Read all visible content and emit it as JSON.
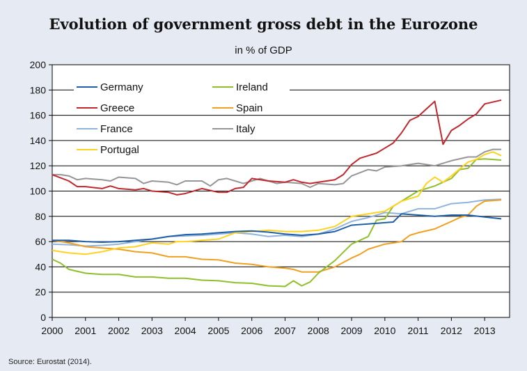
{
  "chart_data": {
    "type": "line",
    "title": "Evolution of government gross debt in the Eurozone",
    "subtitle": "in % of GDP",
    "source": "Source: Eurostat (2014).",
    "xlabel": "",
    "ylabel": "",
    "xlim": [
      2000,
      2013.75
    ],
    "ylim": [
      0,
      200
    ],
    "x_ticks": [
      2000,
      2001,
      2002,
      2003,
      2004,
      2005,
      2006,
      2007,
      2008,
      2009,
      2010,
      2011,
      2012,
      2013
    ],
    "y_ticks": [
      0,
      20,
      40,
      60,
      80,
      100,
      120,
      140,
      160,
      180,
      200
    ],
    "grid": "horizontal",
    "legend_position": "top-left",
    "series": [
      {
        "name": "Germany",
        "color": "#1f5fa6",
        "points": [
          [
            2000,
            61
          ],
          [
            2000.5,
            61
          ],
          [
            2001,
            60
          ],
          [
            2001.5,
            59.5
          ],
          [
            2002,
            60
          ],
          [
            2002.5,
            61
          ],
          [
            2003,
            62
          ],
          [
            2003.5,
            64
          ],
          [
            2004,
            65.5
          ],
          [
            2004.5,
            66
          ],
          [
            2005,
            67
          ],
          [
            2005.5,
            68
          ],
          [
            2006,
            68.5
          ],
          [
            2006.5,
            67.5
          ],
          [
            2007,
            66
          ],
          [
            2007.5,
            65
          ],
          [
            2008,
            66
          ],
          [
            2008.5,
            68
          ],
          [
            2009,
            73
          ],
          [
            2009.5,
            74
          ],
          [
            2010,
            75
          ],
          [
            2010.25,
            75.5
          ],
          [
            2010.5,
            82
          ],
          [
            2011,
            81
          ],
          [
            2011.5,
            80
          ],
          [
            2012,
            81
          ],
          [
            2012.5,
            81
          ],
          [
            2013,
            79.5
          ],
          [
            2013.5,
            78
          ]
        ]
      },
      {
        "name": "Ireland",
        "color": "#8fbf2b",
        "points": [
          [
            2000,
            46
          ],
          [
            2000.25,
            43
          ],
          [
            2000.5,
            38
          ],
          [
            2001,
            35
          ],
          [
            2001.5,
            34
          ],
          [
            2002,
            34
          ],
          [
            2002.5,
            32
          ],
          [
            2003,
            32
          ],
          [
            2003.5,
            31
          ],
          [
            2004,
            31
          ],
          [
            2004.5,
            29.5
          ],
          [
            2005,
            29
          ],
          [
            2005.5,
            27.5
          ],
          [
            2006,
            27
          ],
          [
            2006.5,
            25
          ],
          [
            2007,
            24.5
          ],
          [
            2007.25,
            29
          ],
          [
            2007.5,
            25
          ],
          [
            2007.75,
            28
          ],
          [
            2008,
            35
          ],
          [
            2008.5,
            45
          ],
          [
            2009,
            58
          ],
          [
            2009.5,
            64
          ],
          [
            2009.75,
            77
          ],
          [
            2010,
            78
          ],
          [
            2010.25,
            88
          ],
          [
            2010.5,
            92
          ],
          [
            2011,
            100
          ],
          [
            2011.5,
            104
          ],
          [
            2012,
            110
          ],
          [
            2012.25,
            117
          ],
          [
            2012.5,
            118
          ],
          [
            2012.75,
            125
          ],
          [
            2013,
            125.5
          ],
          [
            2013.5,
            124.5
          ]
        ]
      },
      {
        "name": "Greece",
        "color": "#c0272d",
        "points": [
          [
            2000,
            113
          ],
          [
            2000.5,
            108
          ],
          [
            2000.75,
            103.5
          ],
          [
            2001,
            103.5
          ],
          [
            2001.5,
            102
          ],
          [
            2001.75,
            104
          ],
          [
            2002,
            102
          ],
          [
            2002.5,
            101
          ],
          [
            2002.75,
            102
          ],
          [
            2003,
            100
          ],
          [
            2003.5,
            99
          ],
          [
            2003.75,
            97
          ],
          [
            2004,
            98
          ],
          [
            2004.5,
            102
          ],
          [
            2005,
            99
          ],
          [
            2005.25,
            99
          ],
          [
            2005.5,
            102
          ],
          [
            2005.75,
            103
          ],
          [
            2006,
            110
          ],
          [
            2006.5,
            108
          ],
          [
            2007,
            107
          ],
          [
            2007.25,
            109
          ],
          [
            2007.5,
            107
          ],
          [
            2007.75,
            106
          ],
          [
            2008,
            107
          ],
          [
            2008.5,
            109
          ],
          [
            2008.75,
            113
          ],
          [
            2009,
            121
          ],
          [
            2009.25,
            126
          ],
          [
            2009.5,
            128
          ],
          [
            2009.75,
            130
          ],
          [
            2010,
            134
          ],
          [
            2010.25,
            138
          ],
          [
            2010.5,
            146
          ],
          [
            2010.75,
            156
          ],
          [
            2011,
            159
          ],
          [
            2011.25,
            165
          ],
          [
            2011.5,
            171
          ],
          [
            2011.75,
            137
          ],
          [
            2012,
            148
          ],
          [
            2012.25,
            152
          ],
          [
            2012.5,
            157
          ],
          [
            2012.75,
            161
          ],
          [
            2013,
            169
          ],
          [
            2013.5,
            172
          ]
        ]
      },
      {
        "name": "Spain",
        "color": "#f0a020",
        "points": [
          [
            2000,
            61
          ],
          [
            2000.5,
            59
          ],
          [
            2001,
            56
          ],
          [
            2001.5,
            55
          ],
          [
            2002,
            54
          ],
          [
            2002.5,
            52
          ],
          [
            2003,
            51
          ],
          [
            2003.5,
            48
          ],
          [
            2004,
            48
          ],
          [
            2004.5,
            46
          ],
          [
            2005,
            45.5
          ],
          [
            2005.5,
            43
          ],
          [
            2006,
            42
          ],
          [
            2006.5,
            40
          ],
          [
            2007,
            39
          ],
          [
            2007.25,
            38
          ],
          [
            2007.5,
            36
          ],
          [
            2008,
            36
          ],
          [
            2008.5,
            40
          ],
          [
            2009,
            47
          ],
          [
            2009.25,
            50
          ],
          [
            2009.5,
            54
          ],
          [
            2010,
            58
          ],
          [
            2010.5,
            60
          ],
          [
            2010.75,
            65
          ],
          [
            2011,
            67
          ],
          [
            2011.5,
            70
          ],
          [
            2012,
            76
          ],
          [
            2012.25,
            79
          ],
          [
            2012.5,
            81
          ],
          [
            2012.75,
            88
          ],
          [
            2013,
            92
          ],
          [
            2013.5,
            93
          ]
        ]
      },
      {
        "name": "France",
        "color": "#8fb3dd",
        "points": [
          [
            2000,
            58
          ],
          [
            2000.5,
            57.5
          ],
          [
            2001,
            56.5
          ],
          [
            2001.5,
            57
          ],
          [
            2002,
            58
          ],
          [
            2002.5,
            60
          ],
          [
            2003,
            62
          ],
          [
            2003.5,
            64
          ],
          [
            2004,
            64.5
          ],
          [
            2004.5,
            65
          ],
          [
            2005,
            66
          ],
          [
            2005.5,
            67
          ],
          [
            2006,
            66
          ],
          [
            2006.5,
            64
          ],
          [
            2007,
            65
          ],
          [
            2007.5,
            64
          ],
          [
            2008,
            66
          ],
          [
            2008.5,
            70
          ],
          [
            2009,
            76
          ],
          [
            2009.5,
            79
          ],
          [
            2010,
            83
          ],
          [
            2010.5,
            82
          ],
          [
            2011,
            86
          ],
          [
            2011.5,
            86
          ],
          [
            2012,
            90
          ],
          [
            2012.5,
            91
          ],
          [
            2013,
            93
          ],
          [
            2013.5,
            93.5
          ]
        ]
      },
      {
        "name": "Italy",
        "color": "#959595",
        "points": [
          [
            2000,
            113
          ],
          [
            2000.25,
            113
          ],
          [
            2000.5,
            112
          ],
          [
            2000.75,
            109
          ],
          [
            2001,
            110
          ],
          [
            2001.5,
            109
          ],
          [
            2001.75,
            108
          ],
          [
            2002,
            111
          ],
          [
            2002.5,
            110
          ],
          [
            2002.75,
            106
          ],
          [
            2003,
            108
          ],
          [
            2003.5,
            107
          ],
          [
            2003.75,
            105
          ],
          [
            2004,
            108
          ],
          [
            2004.5,
            108
          ],
          [
            2004.75,
            104
          ],
          [
            2005,
            109
          ],
          [
            2005.25,
            110
          ],
          [
            2005.5,
            108
          ],
          [
            2005.75,
            106
          ],
          [
            2006,
            108
          ],
          [
            2006.25,
            110
          ],
          [
            2006.5,
            108
          ],
          [
            2006.75,
            106
          ],
          [
            2007,
            107
          ],
          [
            2007.5,
            106
          ],
          [
            2007.75,
            103
          ],
          [
            2008,
            106
          ],
          [
            2008.5,
            105
          ],
          [
            2008.75,
            106
          ],
          [
            2009,
            112
          ],
          [
            2009.5,
            117
          ],
          [
            2009.75,
            116
          ],
          [
            2010,
            119
          ],
          [
            2010.5,
            120
          ],
          [
            2011,
            122
          ],
          [
            2011.25,
            121
          ],
          [
            2011.5,
            120
          ],
          [
            2012,
            124
          ],
          [
            2012.5,
            127
          ],
          [
            2012.75,
            127
          ],
          [
            2013,
            131
          ],
          [
            2013.25,
            133
          ],
          [
            2013.5,
            133
          ]
        ]
      },
      {
        "name": "Portugal",
        "color": "#ffd21f",
        "points": [
          [
            2000,
            53
          ],
          [
            2000.5,
            51
          ],
          [
            2001,
            50
          ],
          [
            2001.5,
            52
          ],
          [
            2002,
            55
          ],
          [
            2002.5,
            56
          ],
          [
            2003,
            59
          ],
          [
            2003.5,
            58
          ],
          [
            2003.75,
            60
          ],
          [
            2004,
            60
          ],
          [
            2004.5,
            61
          ],
          [
            2005,
            62
          ],
          [
            2005.5,
            67
          ],
          [
            2006,
            68
          ],
          [
            2006.5,
            69
          ],
          [
            2007,
            68
          ],
          [
            2007.5,
            68
          ],
          [
            2008,
            69
          ],
          [
            2008.5,
            72
          ],
          [
            2009,
            80
          ],
          [
            2009.5,
            82
          ],
          [
            2010,
            84
          ],
          [
            2010.5,
            92
          ],
          [
            2011,
            96
          ],
          [
            2011.25,
            106
          ],
          [
            2011.5,
            111
          ],
          [
            2011.75,
            107
          ],
          [
            2012,
            112
          ],
          [
            2012.5,
            123
          ],
          [
            2012.75,
            125
          ],
          [
            2013,
            129
          ],
          [
            2013.25,
            131
          ],
          [
            2013.5,
            128
          ]
        ]
      }
    ]
  }
}
